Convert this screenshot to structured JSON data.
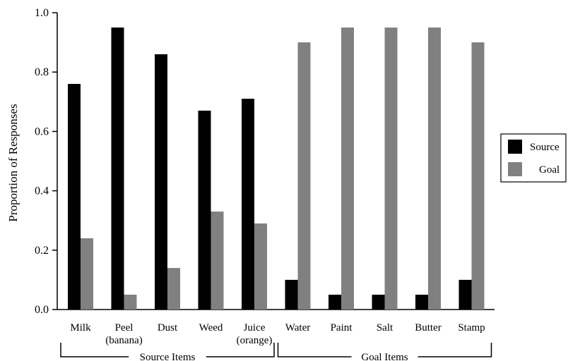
{
  "chart_data": {
    "type": "bar",
    "title": "",
    "xlabel": "",
    "ylabel": "Proportion of Responses",
    "ylim": [
      0,
      1.0
    ],
    "yticks": [
      "0.0",
      "0.2",
      "0.4",
      "0.6",
      "0.8",
      "1.0"
    ],
    "grid": false,
    "legend_position": "right",
    "categories": [
      [
        "Milk"
      ],
      [
        "Peel",
        "(banana)"
      ],
      [
        "Dust"
      ],
      [
        "Weed"
      ],
      [
        "Juice",
        "(orange)"
      ],
      [
        "Water"
      ],
      [
        "Paint"
      ],
      [
        "Salt"
      ],
      [
        "Butter"
      ],
      [
        "Stamp"
      ]
    ],
    "series": [
      {
        "name": "Source",
        "color": "#000000",
        "values": [
          0.76,
          0.95,
          0.86,
          0.67,
          0.71,
          0.1,
          0.05,
          0.05,
          0.05,
          0.1
        ]
      },
      {
        "name": "Goal",
        "color": "#808080",
        "values": [
          0.24,
          0.05,
          0.14,
          0.33,
          0.29,
          0.9,
          0.95,
          0.95,
          0.95,
          0.9
        ]
      }
    ],
    "groups": [
      {
        "label": "Source Items",
        "from": 0,
        "to": 4
      },
      {
        "label": "Goal Items",
        "from": 5,
        "to": 9
      }
    ]
  }
}
